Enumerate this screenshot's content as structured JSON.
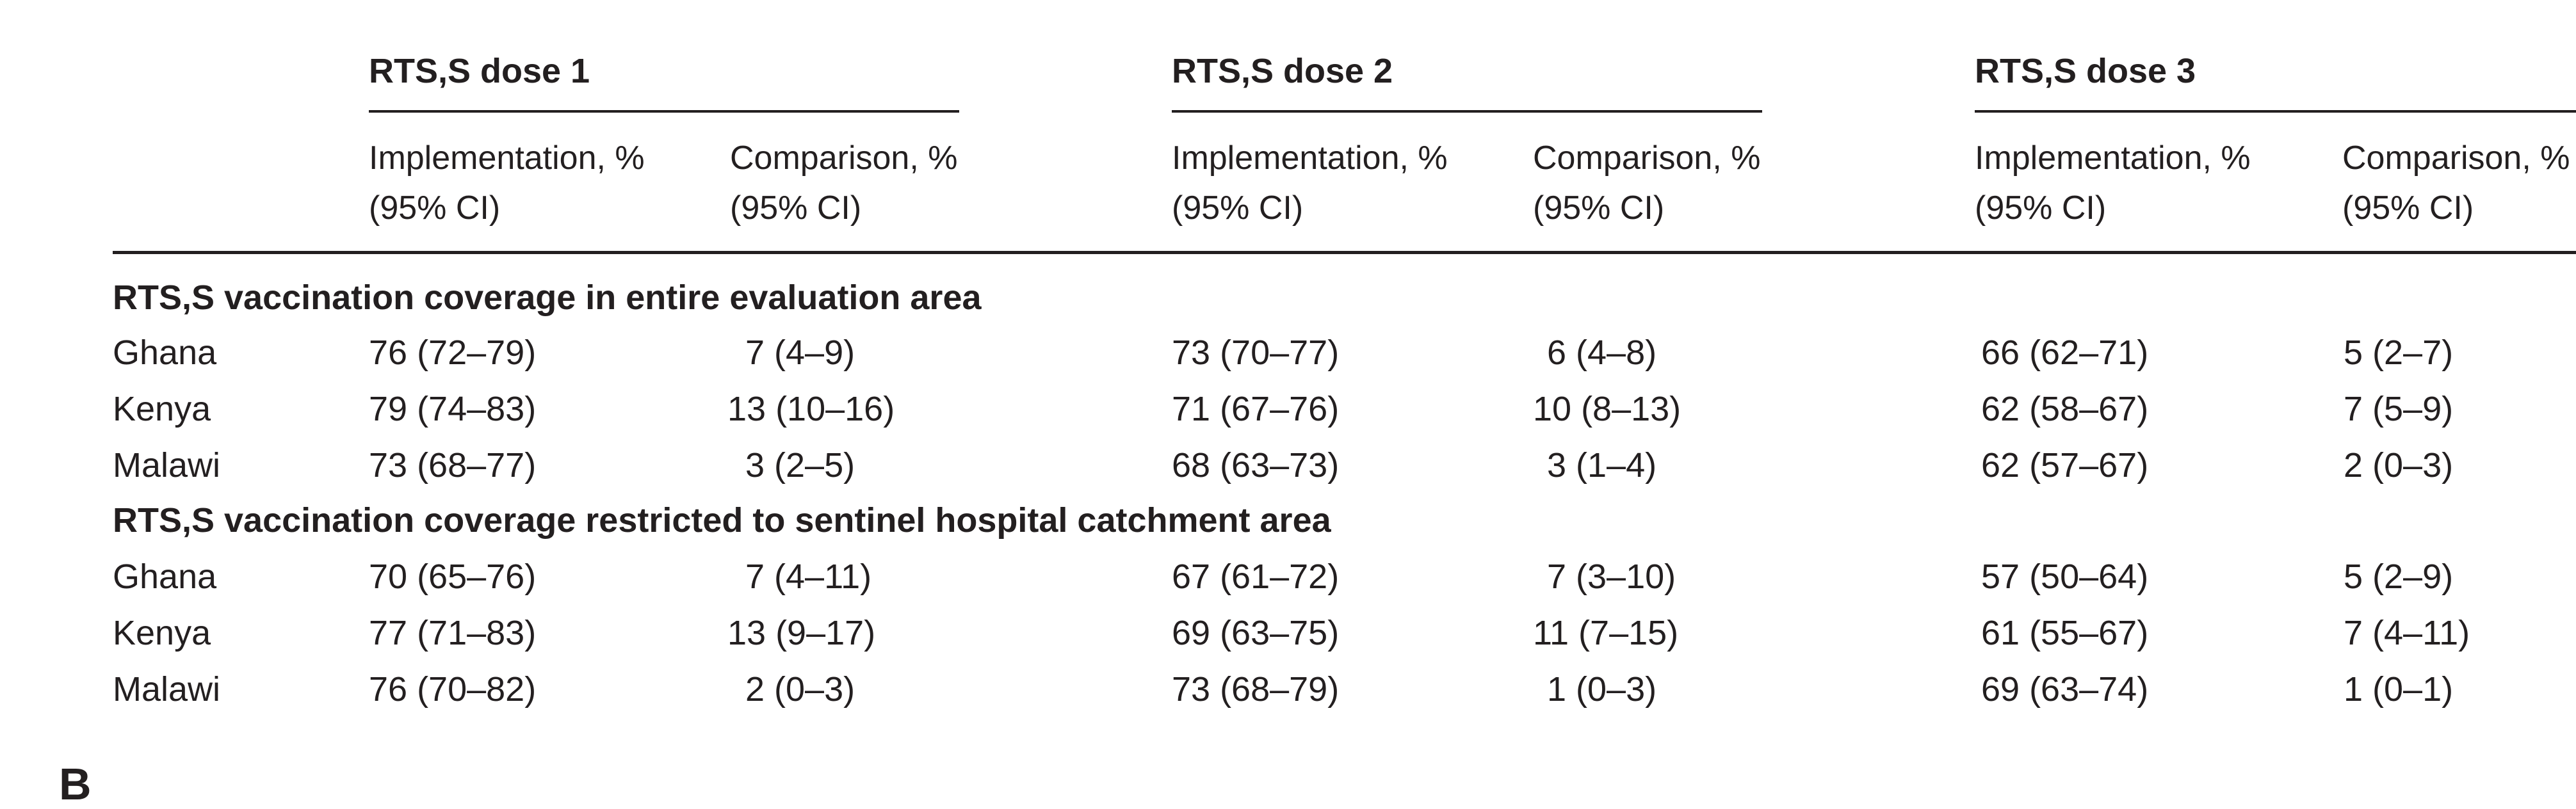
{
  "table": {
    "dose_headers": [
      "RTS,S dose 1",
      "RTS,S dose 2",
      "RTS,S dose 3"
    ],
    "column_headers": [
      {
        "line1": "Implementation, %",
        "line2": "(95% CI)"
      },
      {
        "line1": "Comparison, %",
        "line2": "(95% CI)"
      }
    ],
    "sections": [
      {
        "title": "RTS,S vaccination coverage in entire evaluation area",
        "rows": [
          {
            "country": "Ghana",
            "values": [
              "76 (72–79)",
              "7 (4–9)",
              "73 (70–77)",
              "6 (4–8)",
              "66 (62–71)",
              "5 (2–7)"
            ]
          },
          {
            "country": "Kenya",
            "values": [
              "79 (74–83)",
              "13 (10–16)",
              "71 (67–76)",
              "10 (8–13)",
              "62 (58–67)",
              "7 (5–9)"
            ]
          },
          {
            "country": "Malawi",
            "values": [
              "73 (68–77)",
              "3 (2–5)",
              "68 (63–73)",
              "3 (1–4)",
              "62 (57–67)",
              "2 (0–3)"
            ]
          }
        ]
      },
      {
        "title": "RTS,S vaccination coverage restricted to sentinel hospital catchment area",
        "rows": [
          {
            "country": "Ghana",
            "values": [
              "70 (65–76)",
              "7 (4–11)",
              "67 (61–72)",
              "7 (3–10)",
              "57 (50–64)",
              "5 (2–9)"
            ]
          },
          {
            "country": "Kenya",
            "values": [
              "77 (71–83)",
              "13 (9–17)",
              "69 (63–75)",
              "11 (7–15)",
              "61 (55–67)",
              "7 (4–11)"
            ]
          },
          {
            "country": "Malawi",
            "values": [
              "76 (70–82)",
              "2 (0–3)",
              "73 (68–79)",
              "1 (0–3)",
              "69 (63–74)",
              "1 (0–1)"
            ]
          }
        ]
      }
    ]
  },
  "partial_letter": "B"
}
